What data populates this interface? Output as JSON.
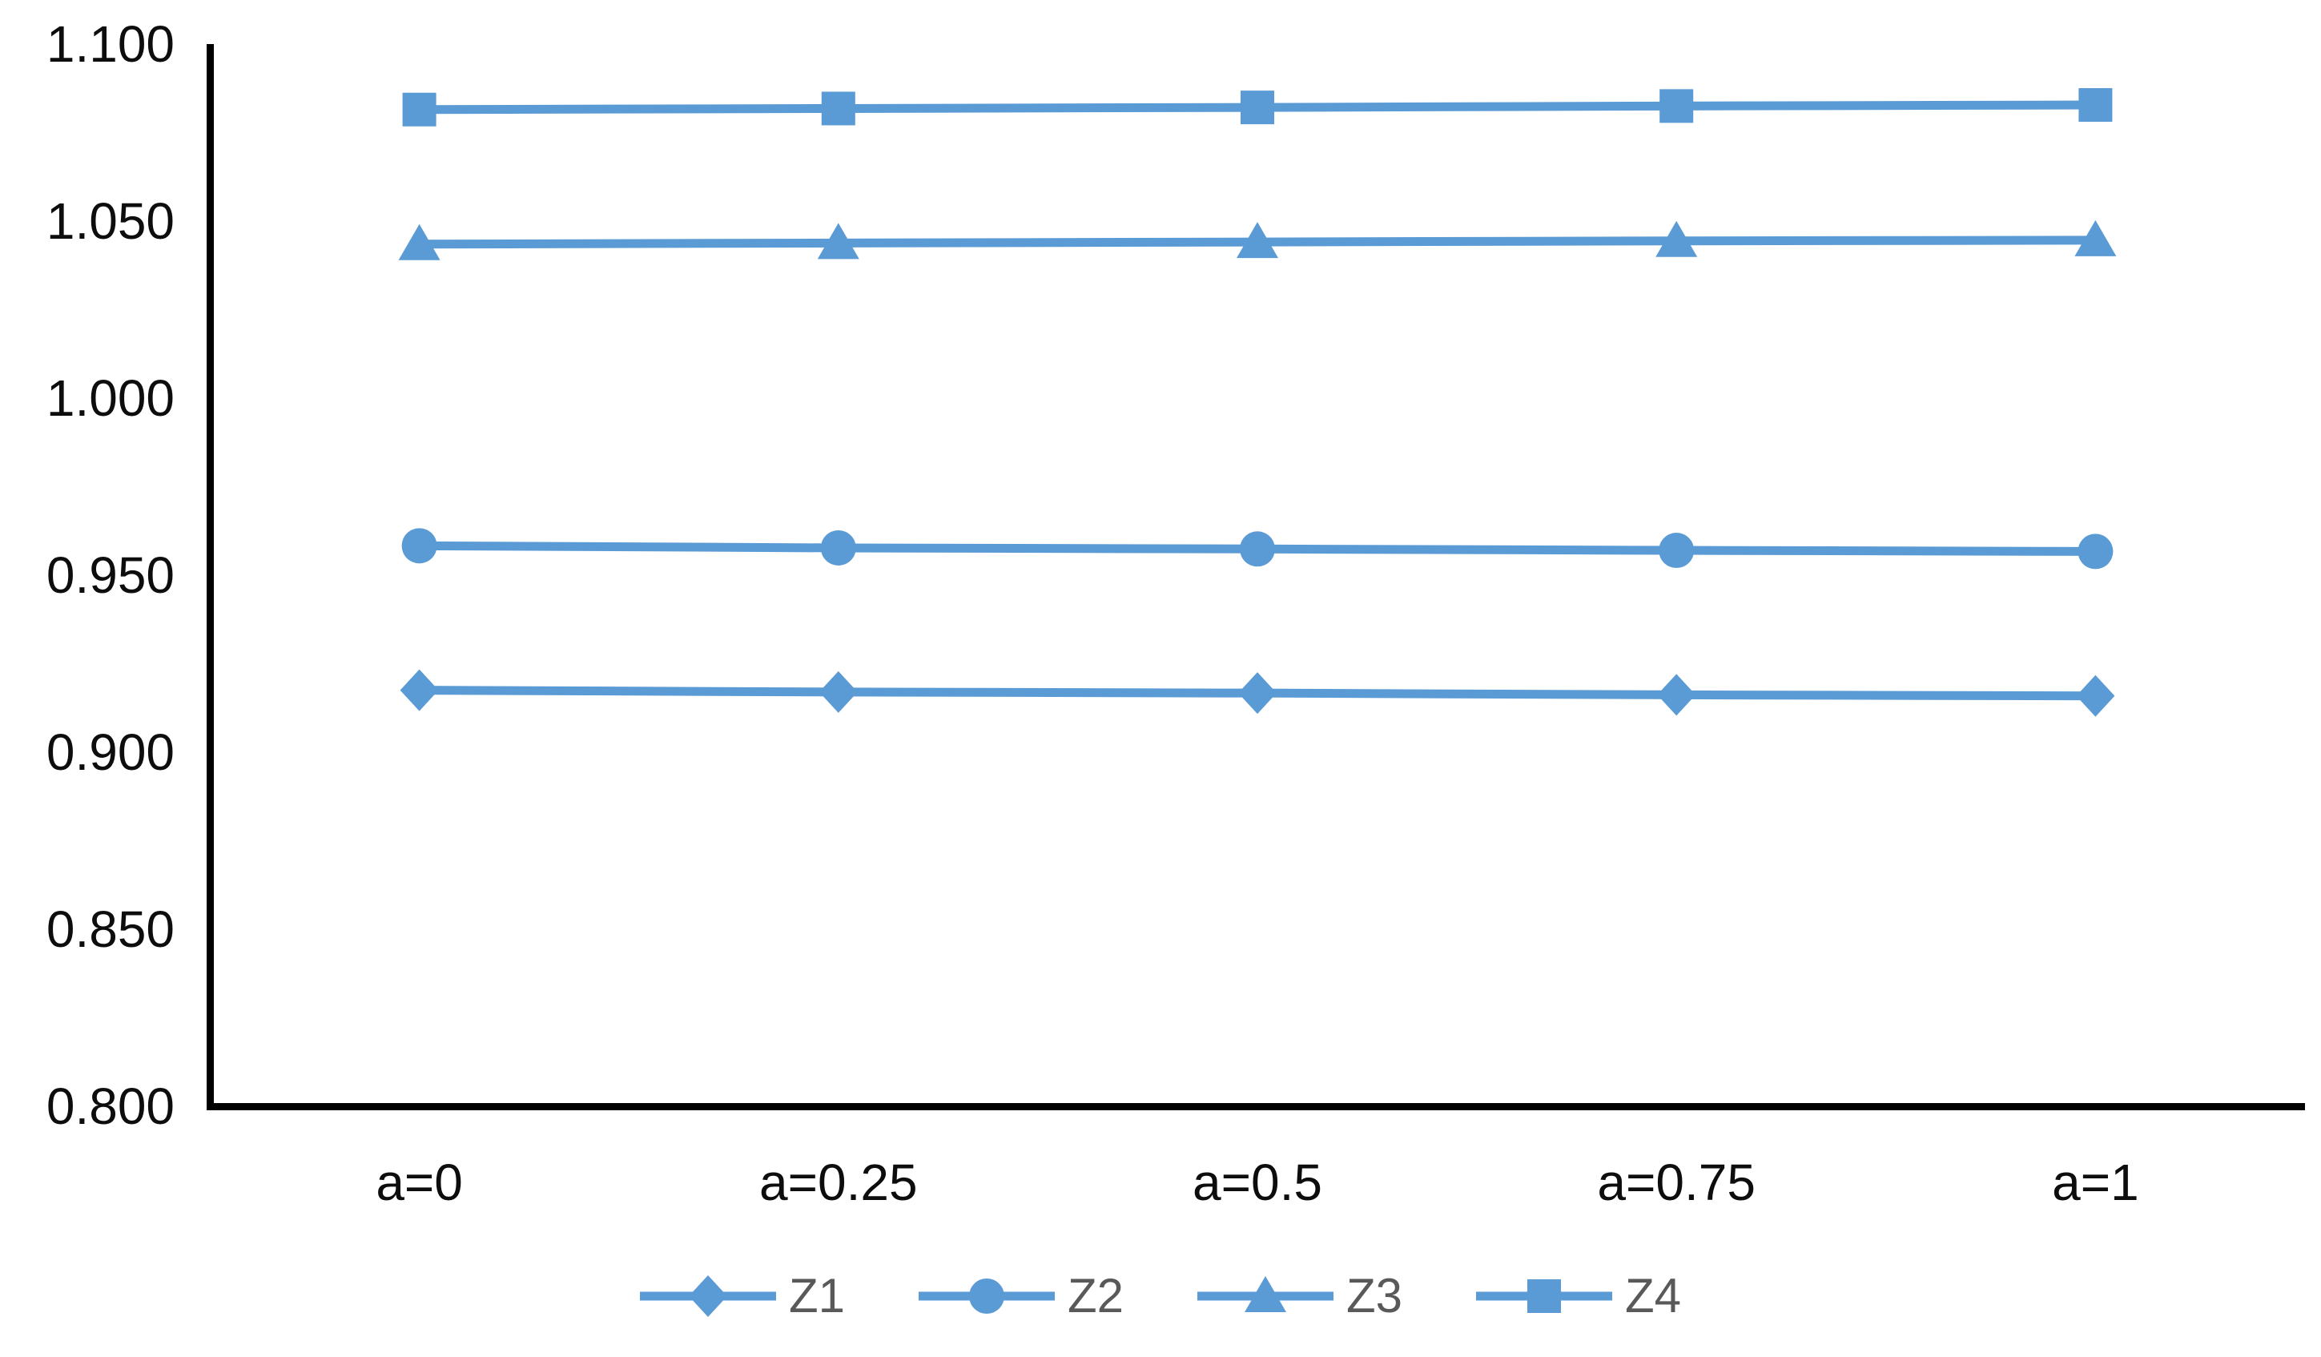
{
  "chart_data": {
    "type": "line",
    "title": "",
    "xlabel": "",
    "ylabel": "",
    "categories": [
      "a=0",
      "a=0.25",
      "a=0.5",
      "a=0.75",
      "a=1"
    ],
    "series": [
      {
        "name": "Z1",
        "marker": "diamond",
        "values": [
          0.9175,
          0.917,
          0.9167,
          0.9162,
          0.9159
        ]
      },
      {
        "name": "Z2",
        "marker": "circle",
        "values": [
          0.9583,
          0.9577,
          0.9574,
          0.957,
          0.9567
        ]
      },
      {
        "name": "Z3",
        "marker": "triangle",
        "values": [
          1.0435,
          1.0438,
          1.0441,
          1.0444,
          1.0446
        ]
      },
      {
        "name": "Z4",
        "marker": "square",
        "values": [
          1.0815,
          1.0818,
          1.0821,
          1.0825,
          1.0828
        ]
      }
    ],
    "ylim": [
      0.8,
      1.1
    ],
    "ytick_step": 0.05,
    "ytick_labels": [
      "1.100",
      "1.050",
      "1.000",
      "0.950",
      "0.900",
      "0.850",
      "0.800"
    ],
    "grid": false,
    "legend_position": "bottom"
  },
  "colors": {
    "series_blue": "#5B9BD5",
    "axis_line": "#000000",
    "tick_label": "#0d0d0d",
    "legend_text": "#595959"
  }
}
